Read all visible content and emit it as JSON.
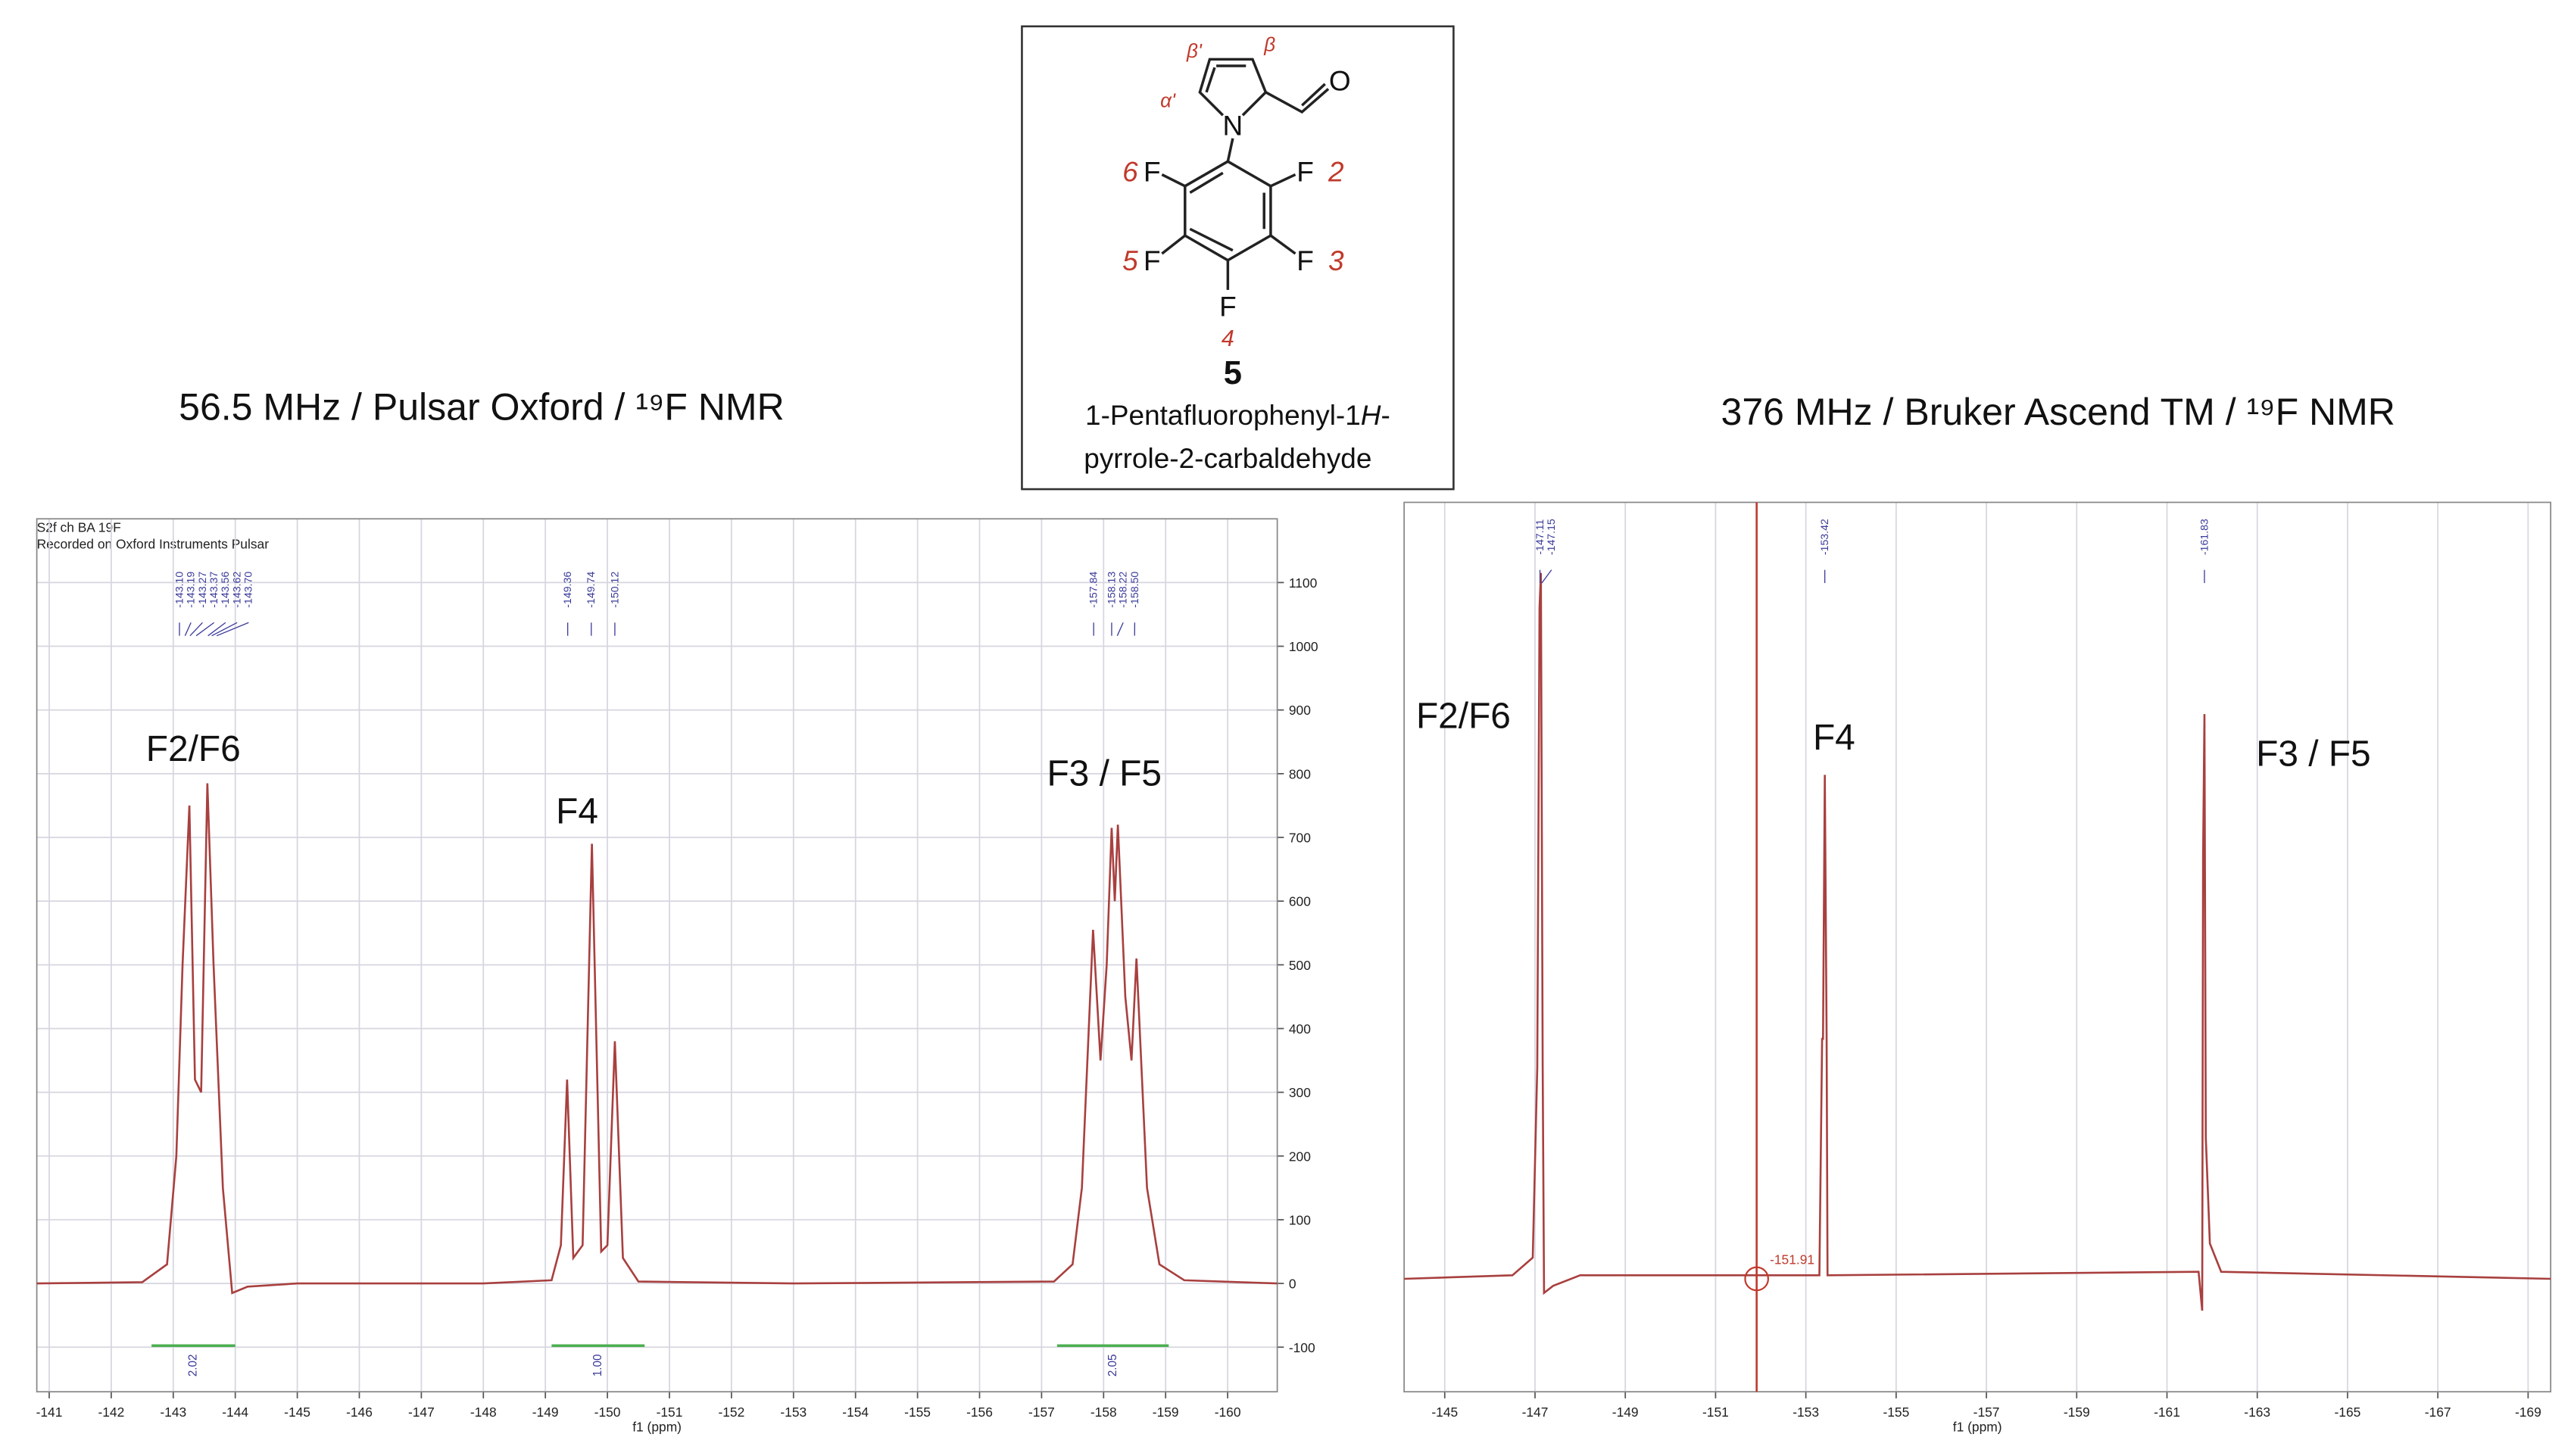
{
  "chart_data": [
    {
      "type": "line",
      "title": "56.5 MHz / Pulsar Oxford / ¹⁹F NMR",
      "header": [
        "S2f ch  BA 19F",
        "Recorded on Oxford Instruments Pulsar"
      ],
      "xlabel": "f1 (ppm)",
      "color": "#a8403f",
      "grid": true,
      "y_axis_side": "right",
      "xlim": [
        -140.8,
        -160.8
      ],
      "ylim": [
        -170,
        1200
      ],
      "xticks": [
        -141,
        -142,
        -143,
        -144,
        -145,
        -146,
        -147,
        -148,
        -149,
        -150,
        -151,
        -152,
        -153,
        -154,
        -155,
        -156,
        -157,
        -158,
        -159,
        -160
      ],
      "yticks": [
        -100,
        0,
        100,
        200,
        300,
        400,
        500,
        600,
        700,
        800,
        900,
        1000,
        1100
      ],
      "x": [
        -140.8,
        -142.5,
        -142.9,
        -143.05,
        -143.15,
        -143.26,
        -143.35,
        -143.45,
        -143.55,
        -143.65,
        -143.8,
        -143.95,
        -144.2,
        -145,
        -148,
        -149.1,
        -149.25,
        -149.35,
        -149.45,
        -149.6,
        -149.75,
        -149.9,
        -150.0,
        -150.12,
        -150.25,
        -150.5,
        -153,
        -157.2,
        -157.5,
        -157.65,
        -157.83,
        -157.95,
        -158.05,
        -158.13,
        -158.18,
        -158.23,
        -158.35,
        -158.45,
        -158.53,
        -158.7,
        -158.9,
        -159.3,
        -160.8
      ],
      "values": [
        0,
        2,
        30,
        200,
        500,
        750,
        320,
        300,
        785,
        500,
        150,
        -15,
        -5,
        0,
        0,
        5,
        60,
        320,
        40,
        60,
        690,
        50,
        60,
        380,
        40,
        3,
        0,
        3,
        30,
        150,
        555,
        350,
        500,
        715,
        600,
        720,
        450,
        350,
        510,
        150,
        30,
        5,
        0
      ],
      "annotations": [
        "F2/F6",
        "F4",
        "F3 / F5"
      ],
      "peak_labels": [
        {
          "value": -143.1,
          "label": "-143.10"
        },
        {
          "value": -143.19,
          "label": "-143.19"
        },
        {
          "value": -143.27,
          "label": "-143.27"
        },
        {
          "value": -143.37,
          "label": "-143.37"
        },
        {
          "value": -143.56,
          "label": "-143.56"
        },
        {
          "value": -143.62,
          "label": "-143.62"
        },
        {
          "value": -143.7,
          "label": "-143.70"
        },
        {
          "value": -149.36,
          "label": "-149.36"
        },
        {
          "value": -149.74,
          "label": "-149.74"
        },
        {
          "value": -150.12,
          "label": "-150.12"
        },
        {
          "value": -157.84,
          "label": "-157.84"
        },
        {
          "value": -158.13,
          "label": "-158.13"
        },
        {
          "value": -158.22,
          "label": "-158.22"
        },
        {
          "value": -158.5,
          "label": "-158.50"
        }
      ],
      "integrals": [
        {
          "range": [
            -142.65,
            -144.0
          ],
          "label": "2.02"
        },
        {
          "range": [
            -149.1,
            -150.6
          ],
          "label": "1.00"
        },
        {
          "range": [
            -157.25,
            -159.05
          ],
          "label": "2.05"
        }
      ]
    },
    {
      "type": "line",
      "title": "376 MHz / Bruker Ascend TM / ¹⁹F NMR",
      "xlabel": "f1 (ppm)",
      "color": "#a8403f",
      "grid": true,
      "xlim": [
        -144.1,
        -169.5
      ],
      "ylim": [
        -0.16,
        1.1
      ],
      "xticks": [
        -145,
        -147,
        -149,
        -151,
        -153,
        -155,
        -157,
        -159,
        -161,
        -163,
        -165,
        -167,
        -169
      ],
      "x": [
        -144.1,
        -146.5,
        -146.95,
        -147.05,
        -147.1,
        -147.13,
        -147.17,
        -147.2,
        -147.4,
        -148,
        -153.3,
        -153.36,
        -153.38,
        -153.42,
        -153.46,
        -153.48,
        -161.7,
        -161.78,
        -161.8,
        -161.83,
        -161.86,
        -161.95,
        -162.2,
        -169.5
      ],
      "values": [
        0,
        0.005,
        0.03,
        0.3,
        0.95,
        1.0,
        0.3,
        -0.02,
        -0.01,
        0.005,
        0.005,
        0.34,
        0.34,
        0.714,
        0.34,
        0.005,
        0.01,
        -0.045,
        0.6,
        0.8,
        0.2,
        0.05,
        0.01,
        0
      ],
      "annotations": [
        "F2/F6",
        "F4",
        "F3 / F5"
      ],
      "peak_labels": [
        {
          "value": -147.11,
          "label": "-147.11"
        },
        {
          "value": -147.15,
          "label": "-147.15"
        },
        {
          "value": -153.42,
          "label": "-153.42"
        },
        {
          "value": -161.83,
          "label": "-161.83"
        }
      ],
      "cursor": -151.91
    }
  ],
  "structure": {
    "atoms": {
      "N": "N",
      "O": "O",
      "F": "F"
    },
    "positions": [
      "2",
      "3",
      "4",
      "5",
      "6"
    ],
    "ring_labels": [
      "α'",
      "β'",
      "β"
    ],
    "compound_number": "5",
    "name_line1": {
      "before": "1-Pentafluorophenyl-1",
      "italic": "H",
      "after": "-"
    },
    "name_line2": "pyrrole-2-carbaldehyde"
  }
}
